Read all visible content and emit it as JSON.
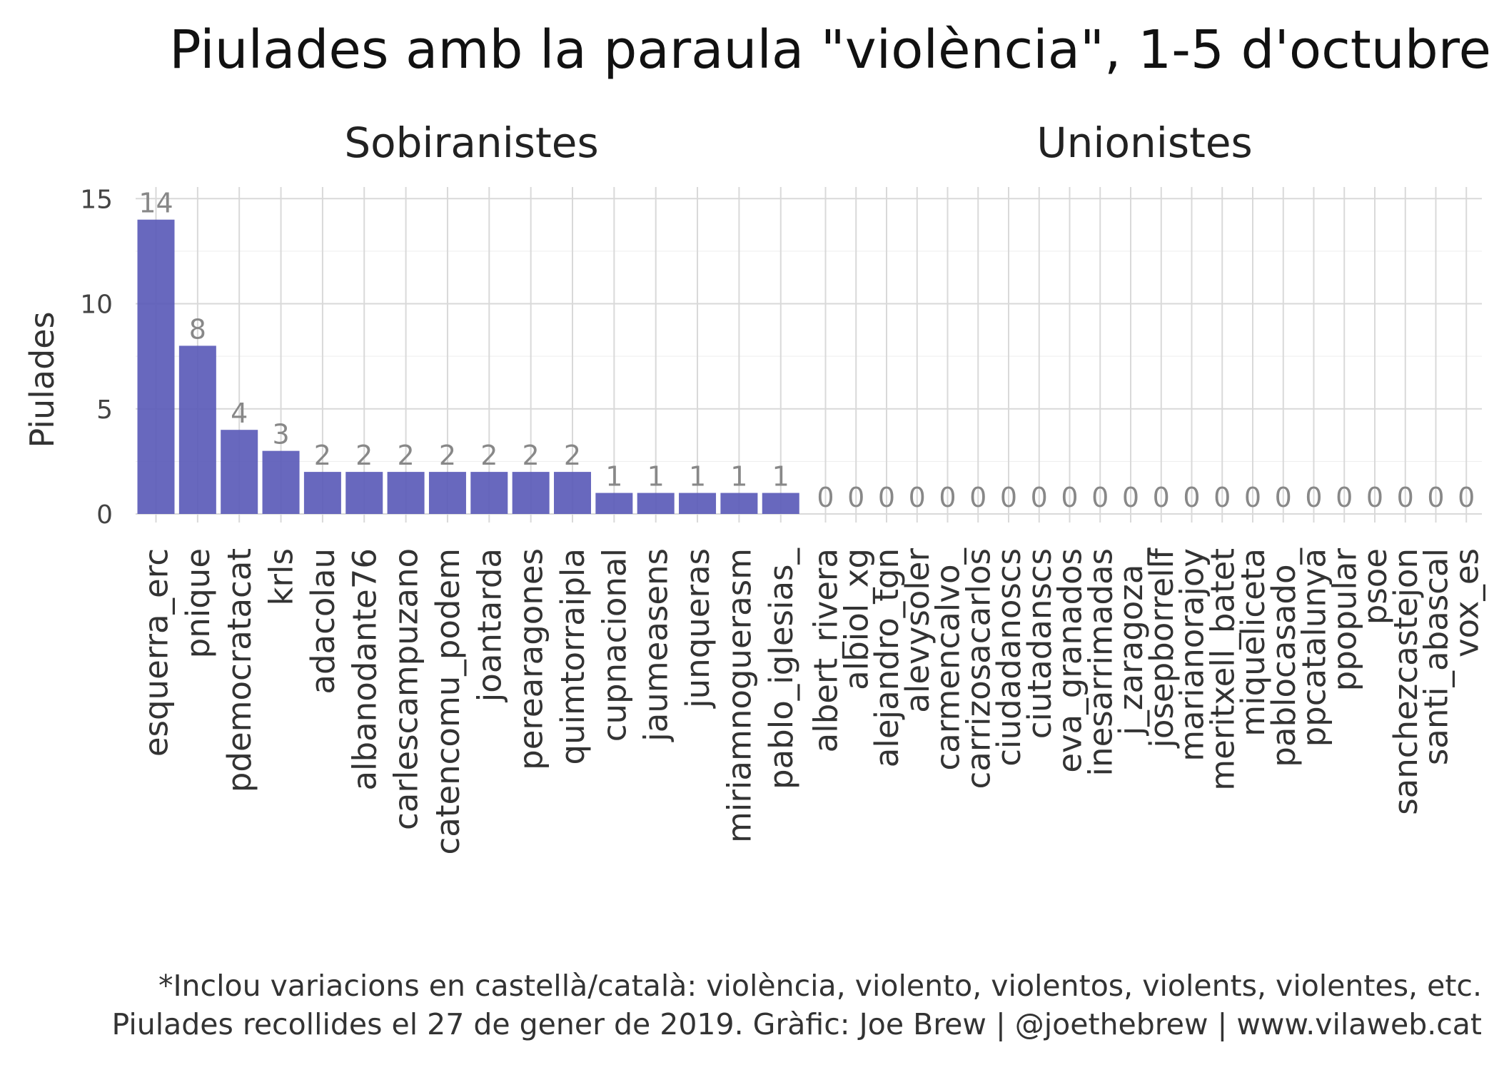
{
  "chart_data": {
    "type": "bar",
    "title": "Piulades amb la paraula \"violència\", 1-5 d'octubre",
    "ylabel": "Piulades",
    "xlabel": "",
    "ylim": [
      0,
      15.5
    ],
    "yticks": [
      0,
      5,
      10,
      15
    ],
    "grid": true,
    "value_labels": true,
    "bar_color": "#5b5bb9",
    "value_label_color": "#888888",
    "facets": [
      {
        "name": "Sobiranistes",
        "categories": [
          "esquerra_erc",
          "pnique",
          "pdemocratacat",
          "krls",
          "adacolau",
          "albanodante76",
          "carlescampuzano",
          "catencomu_podem",
          "joantarda",
          "perearagones",
          "quimtorraipla",
          "cupnacional",
          "jaumeasens",
          "junqueras",
          "miriamnoguerasm",
          "pablo_iglesias_"
        ],
        "values": [
          14,
          8,
          4,
          3,
          2,
          2,
          2,
          2,
          2,
          2,
          2,
          1,
          1,
          1,
          1,
          1
        ]
      },
      {
        "name": "Unionistes",
        "categories": [
          "albert_rivera",
          "albiol_xg",
          "alejandro_tgn",
          "alevysoler",
          "carmencalvo_",
          "carrizosacarlos",
          "ciudadanoscs",
          "ciutadanscs",
          "eva_granados",
          "inesarrimadas",
          "j_zaragoza_",
          "josepborrellf",
          "marianorajoy",
          "meritxell_batet",
          "miqueliceta",
          "pablocasado_",
          "ppcatalunya",
          "ppopular",
          "psoe",
          "sanchezcastejon",
          "santi_abascal",
          "vox_es"
        ],
        "values": [
          0,
          0,
          0,
          0,
          0,
          0,
          0,
          0,
          0,
          0,
          0,
          0,
          0,
          0,
          0,
          0,
          0,
          0,
          0,
          0,
          0,
          0
        ]
      }
    ]
  },
  "caption": {
    "line1": "*Inclou variacions en castellà/català: violència, violento, violentos, violents, violentes, etc.",
    "line2": "Piulades recollides el 27 de gener de 2019. Gràfic: Joe Brew | @joethebrew | www.vilaweb.cat"
  }
}
